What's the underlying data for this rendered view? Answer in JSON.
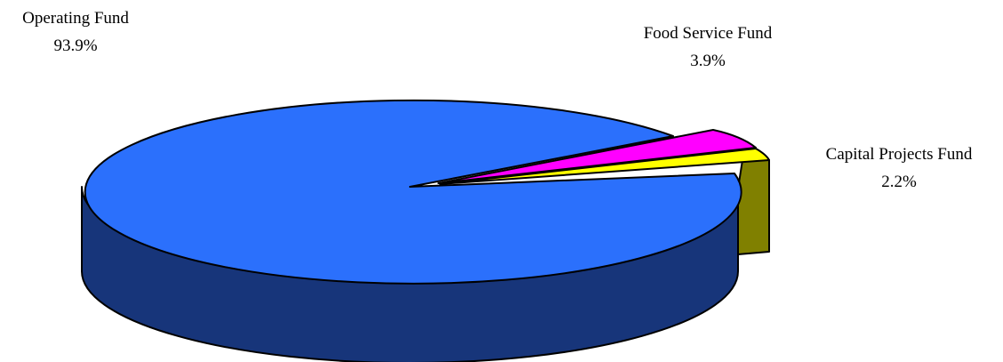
{
  "chart_data": {
    "type": "pie",
    "style": "3d-exploded",
    "slices": [
      {
        "label": "Operating Fund",
        "value_label": "93.9%",
        "value": 93.9,
        "color": "#2b70fc",
        "side_color": "#17357a"
      },
      {
        "label": "Food Service Fund",
        "value_label": "3.9%",
        "value": 3.9,
        "color": "#ff00ff",
        "side_color": "#800080"
      },
      {
        "label": "Capital Projects Fund",
        "value_label": "2.2%",
        "value": 2.2,
        "color": "#ffff00",
        "side_color": "#808000"
      }
    ]
  }
}
